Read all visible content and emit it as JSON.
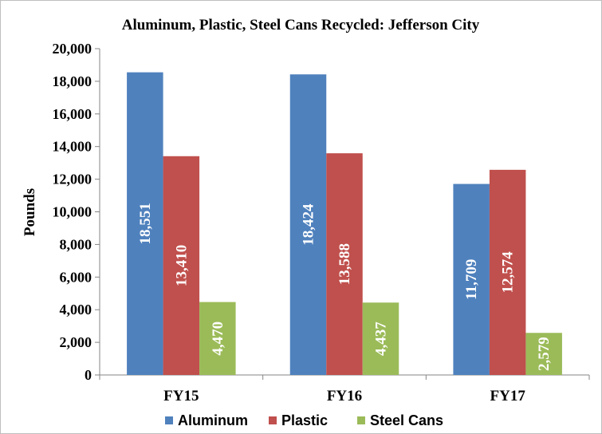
{
  "chart_data": {
    "type": "bar",
    "title": "Aluminum, Plastic, Steel Cans Recycled:  Jefferson City",
    "xlabel": "",
    "ylabel": "Pounds",
    "categories": [
      "FY15",
      "FY16",
      "FY17"
    ],
    "ylim": [
      0,
      20000
    ],
    "yticks": [
      0,
      2000,
      4000,
      6000,
      8000,
      10000,
      12000,
      14000,
      16000,
      18000,
      20000
    ],
    "ytick_labels": [
      "0",
      "2,000",
      "4,000",
      "6,000",
      "8,000",
      "10,000",
      "12,000",
      "14,000",
      "16,000",
      "18,000",
      "20,000"
    ],
    "grid": false,
    "legend_position": "bottom",
    "series": [
      {
        "name": "Aluminum",
        "color": "#4f81bd",
        "values": [
          18551,
          18424,
          11709
        ],
        "labels": [
          "18,551",
          "18,424",
          "11,709"
        ]
      },
      {
        "name": "Plastic",
        "color": "#c0504d",
        "values": [
          13410,
          13588,
          12574
        ],
        "labels": [
          "13,410",
          "13,588",
          "12,574"
        ]
      },
      {
        "name": "Steel Cans",
        "color": "#9bbb59",
        "values": [
          4470,
          4437,
          2579
        ],
        "labels": [
          "4,470",
          "4,437",
          "2,579"
        ]
      }
    ]
  }
}
